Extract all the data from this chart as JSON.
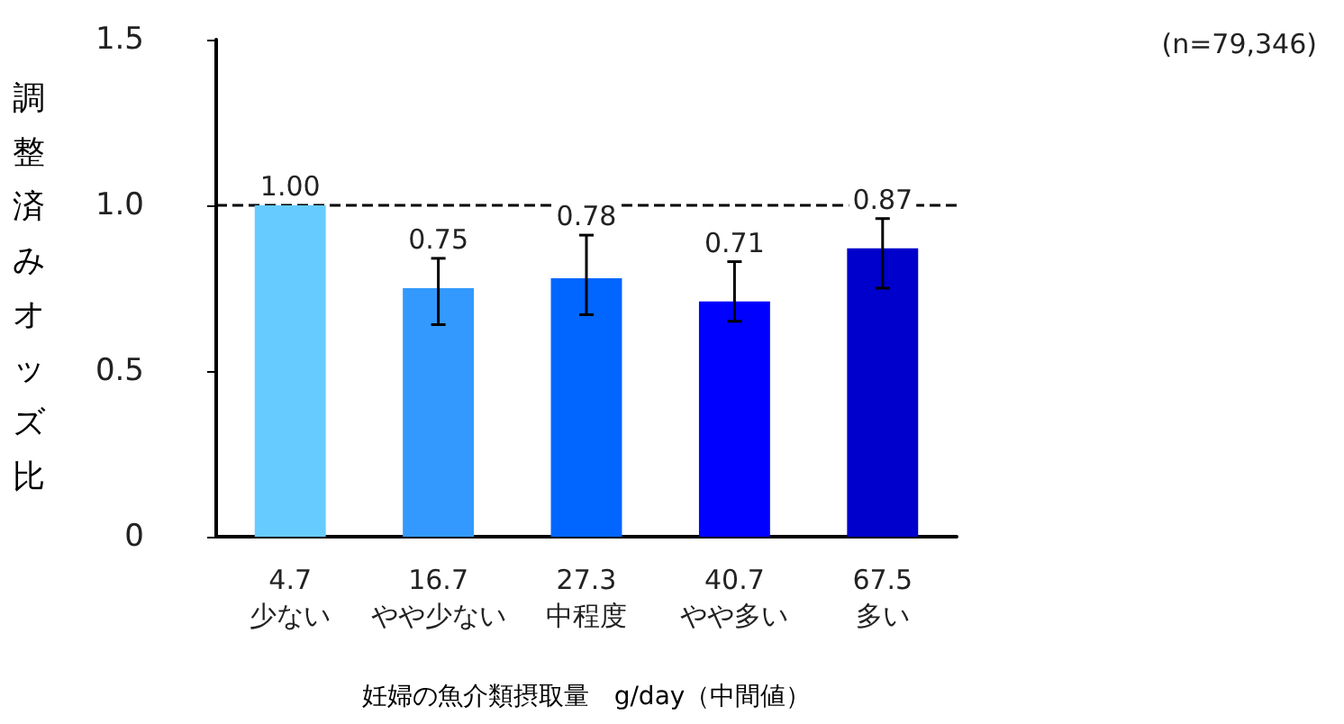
{
  "chart_data": {
    "type": "bar",
    "categories": [
      "4.7\n少ない",
      "16.7\nやや少ない",
      "27.3\n中程度",
      "40.7\nやや多い",
      "67.5\n多い"
    ],
    "values": [
      1.0,
      0.75,
      0.78,
      0.71,
      0.87
    ],
    "value_labels": [
      "1.00",
      "0.75",
      "0.78",
      "0.71",
      "0.87"
    ],
    "colors": [
      "#66ccff",
      "#3399ff",
      "#0066ff",
      "#0000ff",
      "#0000cc"
    ],
    "errors": [
      null,
      [
        0.64,
        0.84
      ],
      [
        0.67,
        0.91
      ],
      [
        0.65,
        0.83
      ],
      [
        0.75,
        0.96
      ]
    ],
    "ylim": [
      0,
      1.5
    ],
    "yticks": [
      {
        "value": 0,
        "label": "0"
      },
      {
        "value": 0.5,
        "label": "0.5"
      },
      {
        "value": 1,
        "label": "1.0"
      },
      {
        "value": 1.5,
        "label": "1.5"
      }
    ],
    "ylabel": "調整済みオッズ比",
    "xlabel": "妊婦の魚介類摂取量　g/day（中間値）",
    "ref_lines": [
      {
        "axis": "y",
        "value": 1,
        "color": "#000000",
        "line_style": "dashed"
      }
    ],
    "annotations": [
      "(n=79,346)"
    ],
    "grid": false
  }
}
